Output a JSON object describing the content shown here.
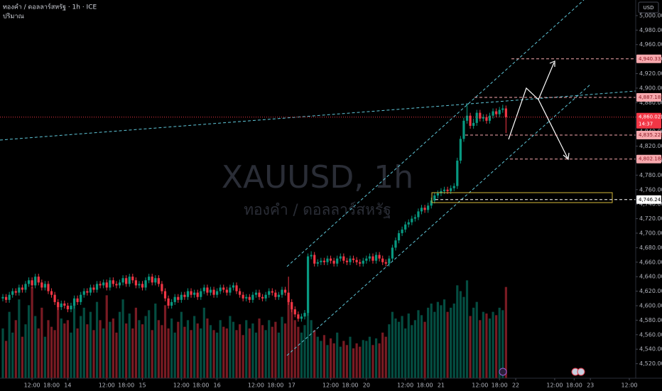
{
  "chart_data": {
    "type": "candlestick",
    "title": "ทองคำ / ดอลลาร์สหรัฐ · 1h · ICE",
    "volume_label": "ปริมาณ",
    "watermark": "XAUUSD, 1h",
    "watermark_subtitle": "ทองคำ / ดอลลาร์สหรัฐ",
    "currency": "USD",
    "up_color": "#089981",
    "down_color": "#f23645",
    "open": [
      4610,
      4612,
      4608,
      4615,
      4620,
      4618,
      4625,
      4622,
      4630,
      4635,
      4628,
      4640,
      4632,
      4625,
      4630,
      4620,
      4615,
      4605,
      4598,
      4603,
      4600,
      4595,
      4600,
      4610,
      4605,
      4615,
      4620,
      4618,
      4625,
      4622,
      4630,
      4628,
      4632,
      4625,
      4635,
      4630,
      4628,
      4632,
      4638,
      4630,
      4640,
      4635,
      4628,
      4630,
      4625,
      4635,
      4640,
      4632,
      4638,
      4630,
      4620,
      4610,
      4600,
      4605,
      4612,
      4608,
      4615,
      4612,
      4620,
      4615,
      4618,
      4612,
      4620,
      4625,
      4618,
      4622,
      4615,
      4620,
      4625,
      4622,
      4618,
      4625,
      4628,
      4620,
      4615,
      4610,
      4612,
      4608,
      4615,
      4618,
      4612,
      4610,
      4615,
      4620,
      4618,
      4612,
      4615,
      4622,
      4618,
      4605,
      4595,
      4588,
      4582,
      4585,
      4590,
      4668,
      4670,
      4658,
      4660,
      4662,
      4660,
      4665,
      4662,
      4658,
      4665,
      4668,
      4662,
      4660,
      4665,
      4663,
      4660,
      4658,
      4662,
      4665,
      4668,
      4662,
      4670,
      4665,
      4660,
      4658,
      4665,
      4680,
      4690,
      4700,
      4705,
      4712,
      4715,
      4720,
      4722,
      4730,
      4735,
      4732,
      4738,
      4745,
      4752,
      4755,
      4758,
      4760,
      4758,
      4762,
      4765,
      4800,
      4830,
      4855,
      4862,
      4848,
      4852,
      4866,
      4858,
      4860,
      4855,
      4862,
      4868,
      4864,
      4870,
      4872
    ],
    "high": [
      4616,
      4616,
      4619,
      4624,
      4624,
      4629,
      4629,
      4634,
      4639,
      4639,
      4644,
      4644,
      4636,
      4634,
      4634,
      4624,
      4619,
      4609,
      4607,
      4607,
      4604,
      4604,
      4614,
      4614,
      4619,
      4624,
      4624,
      4629,
      4629,
      4634,
      4634,
      4636,
      4636,
      4639,
      4639,
      4634,
      4636,
      4642,
      4642,
      4644,
      4644,
      4639,
      4634,
      4634,
      4639,
      4644,
      4644,
      4642,
      4642,
      4634,
      4624,
      4614,
      4609,
      4616,
      4616,
      4619,
      4619,
      4624,
      4624,
      4622,
      4622,
      4624,
      4629,
      4629,
      4626,
      4626,
      4624,
      4629,
      4629,
      4626,
      4629,
      4632,
      4632,
      4624,
      4619,
      4616,
      4616,
      4619,
      4622,
      4622,
      4616,
      4619,
      4624,
      4624,
      4622,
      4619,
      4626,
      4626,
      4640,
      4609,
      4599,
      4592,
      4589,
      4594,
      4672,
      4675,
      4674,
      4664,
      4666,
      4666,
      4669,
      4669,
      4666,
      4669,
      4672,
      4672,
      4666,
      4669,
      4669,
      4667,
      4664,
      4666,
      4669,
      4672,
      4672,
      4674,
      4674,
      4669,
      4664,
      4669,
      4684,
      4694,
      4704,
      4709,
      4716,
      4719,
      4724,
      4726,
      4734,
      4739,
      4739,
      4742,
      4749,
      4756,
      4759,
      4762,
      4764,
      4764,
      4766,
      4769,
      4804,
      4834,
      4859,
      4878,
      4866,
      4858,
      4870,
      4870,
      4864,
      4864,
      4866,
      4872,
      4872,
      4874,
      4877,
      4876
    ],
    "low": [
      4606,
      4604,
      4604,
      4611,
      4614,
      4614,
      4618,
      4618,
      4626,
      4624,
      4624,
      4628,
      4621,
      4621,
      4616,
      4611,
      4601,
      4594,
      4594,
      4596,
      4591,
      4591,
      4596,
      4601,
      4601,
      4611,
      4614,
      4614,
      4618,
      4618,
      4624,
      4624,
      4621,
      4621,
      4626,
      4624,
      4624,
      4628,
      4626,
      4626,
      4631,
      4624,
      4624,
      4621,
      4621,
      4631,
      4628,
      4628,
      4626,
      4616,
      4606,
      4596,
      4596,
      4601,
      4604,
      4604,
      4608,
      4608,
      4611,
      4611,
      4608,
      4608,
      4616,
      4614,
      4614,
      4611,
      4611,
      4616,
      4618,
      4614,
      4614,
      4621,
      4616,
      4611,
      4606,
      4606,
      4604,
      4604,
      4611,
      4608,
      4606,
      4606,
      4611,
      4614,
      4608,
      4608,
      4611,
      4614,
      4601,
      4591,
      4584,
      4578,
      4578,
      4581,
      4586,
      4664,
      4654,
      4654,
      4656,
      4656,
      4656,
      4658,
      4654,
      4654,
      4661,
      4658,
      4656,
      4656,
      4659,
      4656,
      4654,
      4654,
      4658,
      4661,
      4658,
      4658,
      4661,
      4656,
      4654,
      4654,
      4661,
      4676,
      4686,
      4696,
      4701,
      4708,
      4711,
      4716,
      4718,
      4726,
      4728,
      4728,
      4734,
      4741,
      4748,
      4751,
      4754,
      4754,
      4754,
      4758,
      4761,
      4796,
      4826,
      4851,
      4844,
      4844,
      4848,
      4854,
      4854,
      4851,
      4851,
      4858,
      4860,
      4860,
      4866,
      4838
    ],
    "close": [
      4612,
      4608,
      4615,
      4620,
      4618,
      4625,
      4622,
      4630,
      4635,
      4628,
      4640,
      4632,
      4625,
      4630,
      4620,
      4615,
      4605,
      4598,
      4603,
      4600,
      4595,
      4600,
      4610,
      4605,
      4615,
      4620,
      4618,
      4625,
      4622,
      4630,
      4628,
      4632,
      4625,
      4635,
      4630,
      4628,
      4632,
      4638,
      4630,
      4640,
      4635,
      4628,
      4630,
      4625,
      4635,
      4640,
      4632,
      4638,
      4630,
      4620,
      4610,
      4600,
      4605,
      4612,
      4608,
      4615,
      4612,
      4620,
      4615,
      4618,
      4612,
      4620,
      4625,
      4618,
      4622,
      4615,
      4620,
      4625,
      4622,
      4618,
      4625,
      4628,
      4620,
      4615,
      4610,
      4612,
      4608,
      4615,
      4618,
      4612,
      4610,
      4615,
      4620,
      4618,
      4612,
      4615,
      4622,
      4618,
      4605,
      4595,
      4588,
      4582,
      4585,
      4590,
      4668,
      4670,
      4658,
      4660,
      4662,
      4660,
      4665,
      4662,
      4658,
      4665,
      4668,
      4662,
      4660,
      4665,
      4663,
      4660,
      4658,
      4662,
      4665,
      4668,
      4662,
      4670,
      4665,
      4660,
      4658,
      4665,
      4680,
      4690,
      4700,
      4705,
      4712,
      4715,
      4720,
      4722,
      4730,
      4735,
      4732,
      4738,
      4745,
      4752,
      4755,
      4758,
      4760,
      4758,
      4762,
      4765,
      4800,
      4830,
      4855,
      4862,
      4848,
      4852,
      4866,
      4858,
      4860,
      4855,
      4862,
      4868,
      4864,
      4870,
      4872,
      4860
    ],
    "volume": [
      60,
      45,
      80,
      55,
      70,
      95,
      50,
      65,
      88,
      110,
      75,
      60,
      85,
      50,
      70,
      62,
      58,
      90,
      72,
      66,
      70,
      55,
      90,
      60,
      75,
      85,
      65,
      80,
      58,
      92,
      70,
      60,
      100,
      68,
      72,
      55,
      80,
      95,
      66,
      78,
      60,
      85,
      70,
      65,
      75,
      82,
      58,
      90,
      70,
      64,
      88,
      60,
      72,
      55,
      68,
      80,
      62,
      70,
      58,
      75,
      66,
      60,
      85,
      72,
      64,
      58,
      55,
      70,
      62,
      60,
      75,
      68,
      58,
      65,
      52,
      70,
      60,
      66,
      55,
      72,
      64,
      58,
      70,
      62,
      68,
      55,
      74,
      66,
      95,
      88,
      70,
      62,
      55,
      64,
      120,
      70,
      58,
      50,
      45,
      52,
      40,
      48,
      42,
      55,
      38,
      45,
      40,
      50,
      36,
      42,
      38,
      46,
      45,
      50,
      40,
      48,
      42,
      55,
      50,
      65,
      80,
      72,
      68,
      75,
      60,
      78,
      64,
      70,
      82,
      76,
      68,
      85,
      90,
      80,
      92,
      88,
      95,
      80,
      85,
      90,
      112,
      105,
      98,
      118,
      75,
      85,
      92,
      70,
      80,
      78,
      72,
      80,
      76,
      85,
      82,
      110
    ],
    "ylim": [
      4500,
      5021.5
    ],
    "yticks": [
      {
        "value": 4520,
        "label": "4,520.000"
      },
      {
        "value": 4540,
        "label": "4,540.000"
      },
      {
        "value": 4560,
        "label": "4,560.000"
      },
      {
        "value": 4580,
        "label": "4,580.000"
      },
      {
        "value": 4600,
        "label": "4,600.000"
      },
      {
        "value": 4620,
        "label": "4,620.000"
      },
      {
        "value": 4640,
        "label": "4,640.000"
      },
      {
        "value": 4660,
        "label": "4,660.000"
      },
      {
        "value": 4680,
        "label": "4,680.000"
      },
      {
        "value": 4700,
        "label": "4,700.000"
      },
      {
        "value": 4720,
        "label": "4,720.000"
      },
      {
        "value": 4740,
        "label": "4,740.000"
      },
      {
        "value": 4760,
        "label": "4,760.000"
      },
      {
        "value": 4780,
        "label": "4,780.000"
      },
      {
        "value": 4800,
        "label": "4,800.000"
      },
      {
        "value": 4820,
        "label": "4,820.000"
      },
      {
        "value": 4840,
        "label": "4,840.000"
      },
      {
        "value": 4860,
        "label": "4,860.000"
      },
      {
        "value": 4880,
        "label": "4,880.000"
      },
      {
        "value": 4900,
        "label": "4,900.000"
      },
      {
        "value": 4920,
        "label": "4,920.000"
      },
      {
        "value": 4940,
        "label": "4,940.000"
      },
      {
        "value": 4960,
        "label": "4,960.000"
      },
      {
        "value": 4980,
        "label": "4,980.000"
      },
      {
        "value": 5000,
        "label": "5,000.000"
      }
    ],
    "xticks": [
      {
        "value": 9,
        "label": "12:00"
      },
      {
        "value": 15,
        "label": "18:00"
      },
      {
        "value": 20,
        "label": "14"
      },
      {
        "value": 32,
        "label": "12:00"
      },
      {
        "value": 38,
        "label": "18:00"
      },
      {
        "value": 43,
        "label": "15"
      },
      {
        "value": 55,
        "label": "12:00"
      },
      {
        "value": 61,
        "label": "18:00"
      },
      {
        "value": 66,
        "label": "16"
      },
      {
        "value": 78,
        "label": "12:00"
      },
      {
        "value": 84,
        "label": "18:00"
      },
      {
        "value": 89,
        "label": "17"
      },
      {
        "value": 101,
        "label": "12:00"
      },
      {
        "value": 107,
        "label": "18:00"
      },
      {
        "value": 112,
        "label": "20"
      },
      {
        "value": 124,
        "label": "12:00"
      },
      {
        "value": 130,
        "label": "18:00"
      },
      {
        "value": 135,
        "label": "21"
      },
      {
        "value": 147,
        "label": "12:00"
      },
      {
        "value": 153,
        "label": "18:00"
      },
      {
        "value": 158,
        "label": "22"
      },
      {
        "value": 170,
        "label": "12:00"
      },
      {
        "value": 176,
        "label": "18:00"
      },
      {
        "value": 181,
        "label": "23"
      },
      {
        "value": 193,
        "label": "12:00"
      }
    ],
    "levels": [
      {
        "value": 4940.333,
        "label": "4,940.333",
        "color": "#f7a9ae"
      },
      {
        "value": 4887.183,
        "label": "4,887.183",
        "color": "#f7a9ae"
      },
      {
        "value": 4860.021,
        "label": "4,860.021",
        "color": "#f23645",
        "countdown": "14:37"
      },
      {
        "value": 4835.228,
        "label": "4,835.228",
        "color": "#f7a9ae"
      },
      {
        "value": 4802.188,
        "label": "4,802.188",
        "color": "#f7a9ae"
      },
      {
        "value": 4746.247,
        "label": "4,746.247",
        "color": "#ffffff"
      }
    ]
  }
}
